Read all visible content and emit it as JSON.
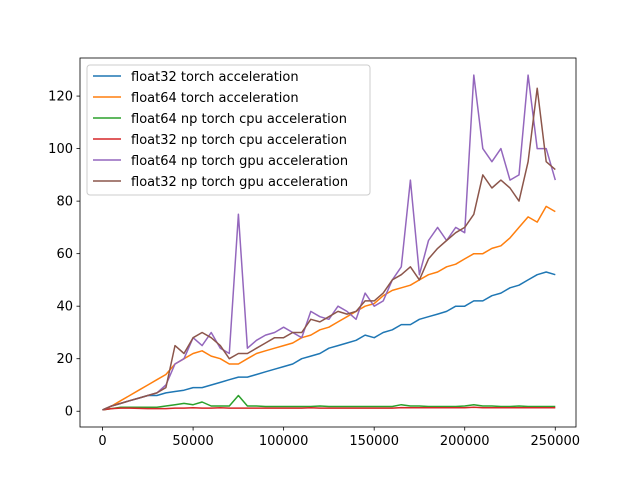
{
  "chart_data": {
    "type": "line",
    "title": "",
    "xlabel": "",
    "ylabel": "",
    "xlim": [
      -12450,
      261450
    ],
    "ylim": [
      -6,
      134.5
    ],
    "xticks": [
      0,
      50000,
      100000,
      150000,
      200000,
      250000
    ],
    "xtick_labels": [
      "0",
      "50000",
      "100000",
      "150000",
      "200000",
      "250000"
    ],
    "yticks": [
      0,
      20,
      40,
      60,
      80,
      100,
      120
    ],
    "ytick_labels": [
      "0",
      "20",
      "40",
      "60",
      "80",
      "100",
      "120"
    ],
    "grid": false,
    "legend_position": "upper-left",
    "x": [
      0,
      5000,
      10000,
      15000,
      20000,
      25000,
      30000,
      35000,
      40000,
      45000,
      50000,
      55000,
      60000,
      65000,
      70000,
      75000,
      80000,
      85000,
      90000,
      95000,
      100000,
      105000,
      110000,
      115000,
      120000,
      125000,
      130000,
      135000,
      140000,
      145000,
      150000,
      155000,
      160000,
      165000,
      170000,
      175000,
      180000,
      185000,
      190000,
      195000,
      200000,
      205000,
      210000,
      215000,
      220000,
      225000,
      230000,
      235000,
      240000,
      245000,
      250000
    ],
    "series": [
      {
        "name": "float32 torch acceleration",
        "color": "#1f77b4",
        "values": [
          0.5,
          2,
          3,
          4,
          5,
          6,
          6,
          7,
          7.5,
          8,
          9,
          9,
          10,
          11,
          12,
          13,
          13,
          14,
          15,
          16,
          17,
          18,
          20,
          21,
          22,
          24,
          25,
          26,
          27,
          29,
          28,
          30,
          31,
          33,
          33,
          35,
          36,
          37,
          38,
          40,
          40,
          42,
          42,
          44,
          45,
          47,
          48,
          50,
          52,
          53,
          52
        ]
      },
      {
        "name": "float64 torch acceleration",
        "color": "#ff7f0e",
        "values": [
          0.5,
          2,
          4,
          6,
          8,
          10,
          12,
          14,
          18,
          20,
          22,
          23,
          21,
          20,
          18,
          18,
          20,
          22,
          23,
          24,
          25,
          26,
          28,
          29,
          31,
          32,
          34,
          36,
          38,
          40,
          41,
          44,
          46,
          47,
          48,
          50,
          52,
          53,
          55,
          56,
          58,
          60,
          60,
          62,
          63,
          66,
          70,
          74,
          72,
          78,
          76
        ]
      },
      {
        "name": "float64 np torch cpu acceleration",
        "color": "#2ca02c",
        "values": [
          0.5,
          1,
          1.5,
          1.5,
          1.5,
          1.5,
          1.5,
          2,
          2.5,
          3,
          2.5,
          3.5,
          2,
          2,
          2,
          6,
          2,
          2,
          1.8,
          1.8,
          1.8,
          1.8,
          1.8,
          1.8,
          2,
          1.8,
          1.8,
          1.8,
          1.8,
          1.8,
          1.8,
          1.8,
          1.8,
          2.5,
          2,
          2,
          1.8,
          1.8,
          1.8,
          1.8,
          2,
          2.5,
          2,
          2,
          1.8,
          1.8,
          2,
          1.8,
          1.8,
          1.8,
          1.8
        ]
      },
      {
        "name": "float32 np torch cpu acceleration",
        "color": "#d62728",
        "values": [
          0.5,
          1,
          1.2,
          1.2,
          1.1,
          1,
          1,
          1,
          1.2,
          1.2,
          1.3,
          1.2,
          1.2,
          1.3,
          1.2,
          1.2,
          1.2,
          1.2,
          1.2,
          1.2,
          1.2,
          1.2,
          1.2,
          1.3,
          1.2,
          1.2,
          1.2,
          1.2,
          1.2,
          1.2,
          1.2,
          1.2,
          1.2,
          1.4,
          1.3,
          1.3,
          1.3,
          1.3,
          1.3,
          1.3,
          1.3,
          1.5,
          1.3,
          1.3,
          1.3,
          1.3,
          1.3,
          1.3,
          1.3,
          1.3,
          1.3
        ]
      },
      {
        "name": "float64 np torch gpu acceleration",
        "color": "#9467bd",
        "values": [
          0.5,
          2,
          3,
          4,
          5,
          6,
          7,
          10,
          18,
          20,
          28,
          25,
          30,
          24,
          22,
          75,
          24,
          27,
          29,
          30,
          32,
          30,
          28,
          38,
          36,
          35,
          40,
          38,
          35,
          45,
          40,
          42,
          50,
          55,
          88,
          52,
          65,
          70,
          65,
          70,
          68,
          128,
          100,
          95,
          100,
          88,
          90,
          128,
          100,
          100,
          88
        ]
      },
      {
        "name": "float32 np torch gpu acceleration",
        "color": "#8c564b",
        "values": [
          0.5,
          2,
          3,
          4,
          5,
          6,
          7,
          9,
          25,
          22,
          28,
          30,
          28,
          25,
          20,
          22,
          22,
          24,
          26,
          28,
          28,
          30,
          30,
          35,
          34,
          36,
          38,
          37,
          38,
          42,
          42,
          45,
          50,
          52,
          55,
          50,
          58,
          62,
          65,
          68,
          70,
          75,
          90,
          85,
          88,
          85,
          80,
          95,
          123,
          95,
          92
        ]
      }
    ]
  }
}
